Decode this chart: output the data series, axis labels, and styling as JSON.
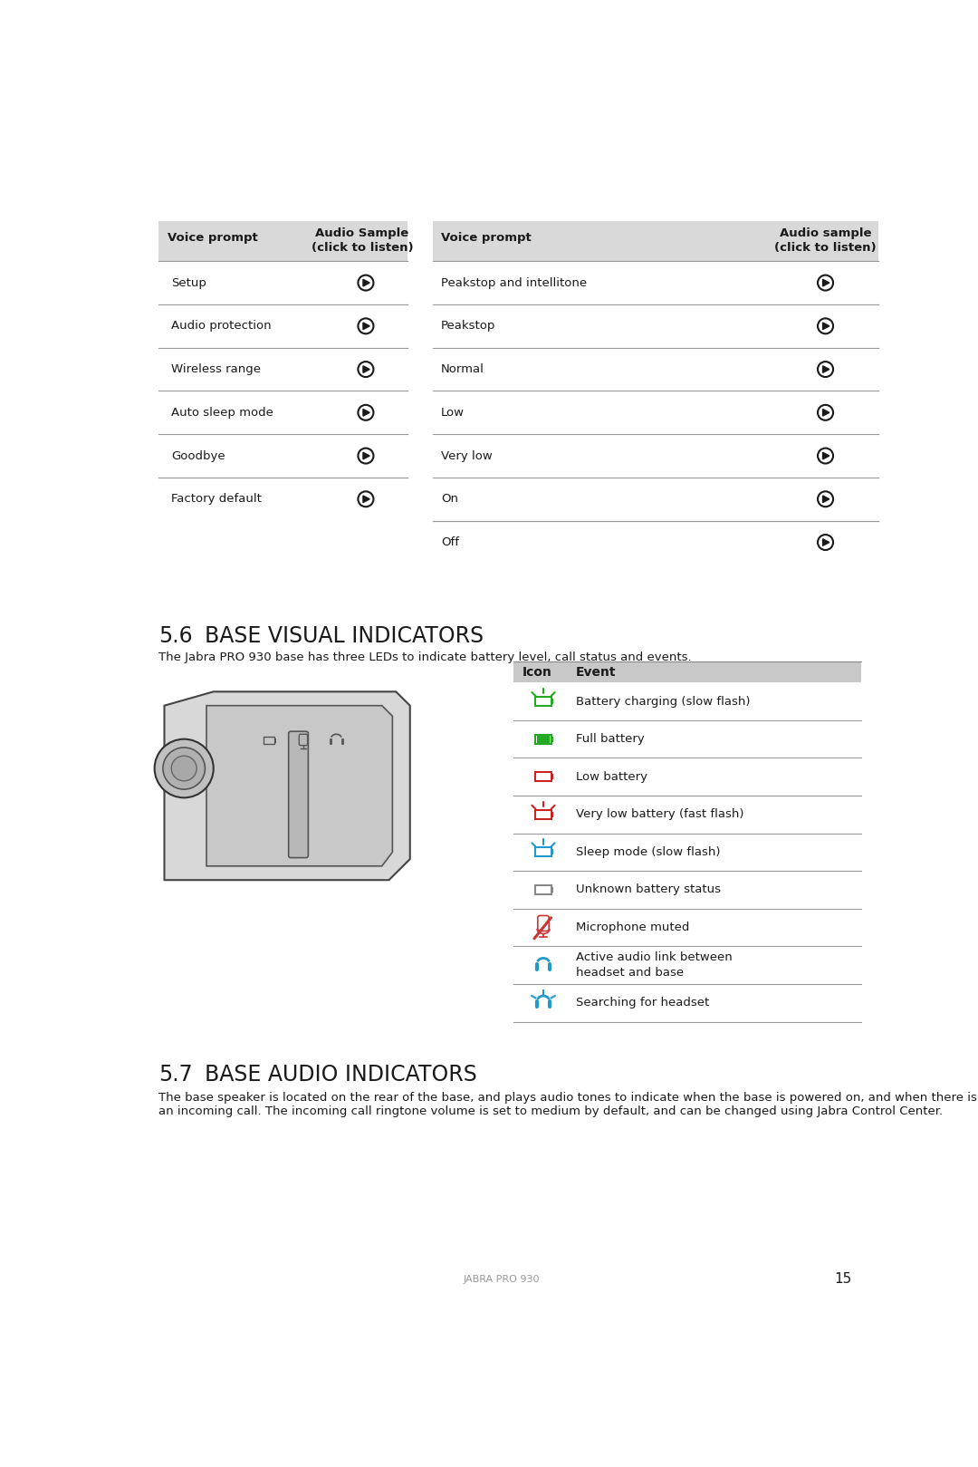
{
  "page_bg": "#ffffff",
  "page_number": "15",
  "footer_text": "JABRA PRO 930",
  "table1_header": [
    "Voice prompt",
    "Audio Sample\n(click to listen)"
  ],
  "table1_rows": [
    "Setup",
    "Audio protection",
    "Wireless range",
    "Auto sleep mode",
    "Goodbye",
    "Factory default"
  ],
  "table2_header": [
    "Voice prompt",
    "Audio sample\n(click to listen)"
  ],
  "table2_rows": [
    "Peakstop and intellitone",
    "Peakstop",
    "Normal",
    "Low",
    "Very low",
    "On",
    "Off"
  ],
  "section56_number": "5.6",
  "section56_title": "BASE VISUAL INDICATORS",
  "section56_desc": "The Jabra PRO 930 base has three LEDs to indicate battery level, call status and events.",
  "icon_table_header": [
    "Icon",
    "Event"
  ],
  "icon_table_rows": [
    "Battery charging (slow flash)",
    "Full battery",
    "Low battery",
    "Very low battery (fast flash)",
    "Sleep mode (slow flash)",
    "Unknown battery status",
    "Microphone muted",
    "Active audio link between\nheadset and base",
    "Searching for headset"
  ],
  "section57_number": "5.7",
  "section57_title": "BASE AUDIO INDICATORS",
  "section57_desc": "The base speaker is located on the rear of the base, and plays audio tones to indicate when the base is powered on, and when there is an incoming call. The incoming call ringtone volume is set to medium by default, and can be changed using Jabra Control Center.",
  "header_bg": "#d9d9d9",
  "icon_header_bg": "#c8c8c8",
  "row_divider": "#aaaaaa",
  "text_color": "#1a1a1a",
  "section_title_color": "#1a1a1a",
  "icon_green": "#22aa22",
  "icon_red": "#cc2222",
  "icon_blue": "#2299cc",
  "icon_gray": "#888888"
}
